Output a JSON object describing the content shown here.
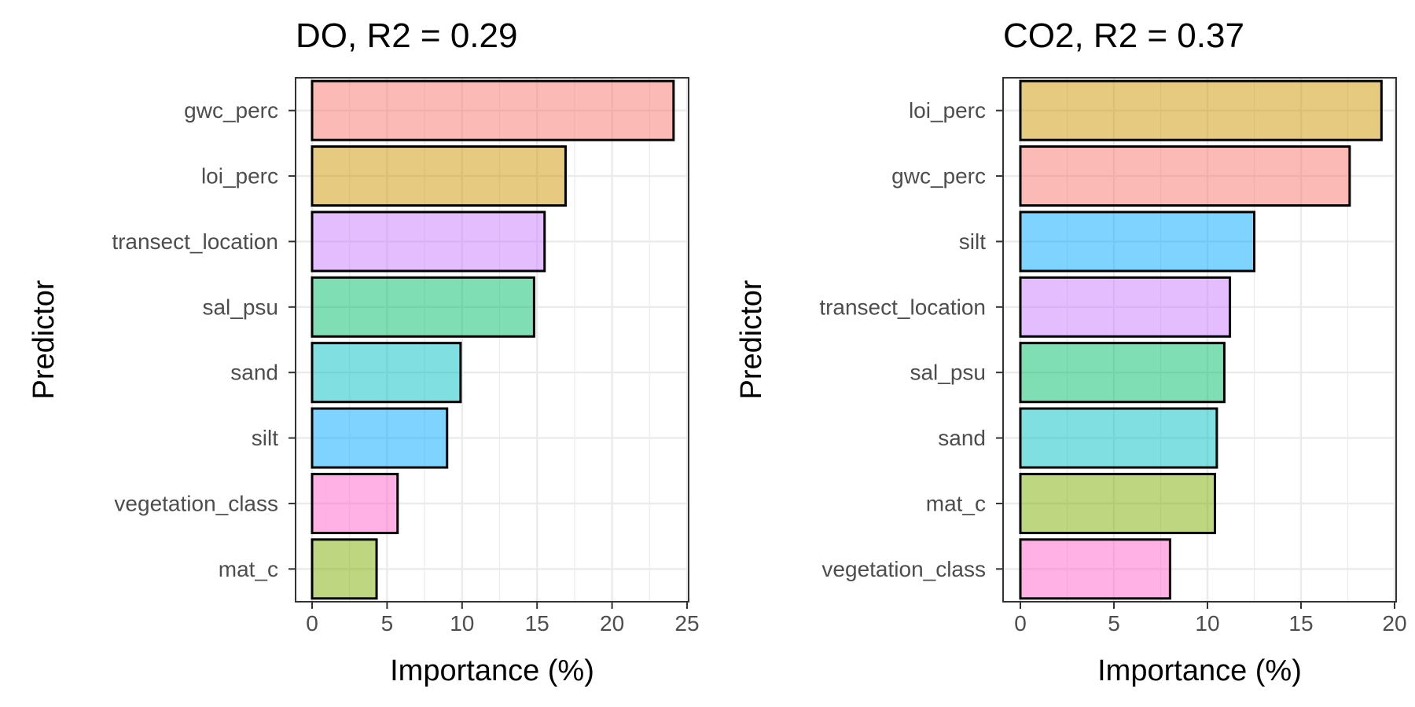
{
  "chart_data": [
    {
      "type": "bar",
      "orientation": "horizontal",
      "title": "DO, R2 = 0.29",
      "xlabel": "Importance (%)",
      "ylabel": "Predictor",
      "xlim": [
        0,
        25
      ],
      "xticks": [
        0,
        5,
        10,
        15,
        20,
        25
      ],
      "grid": true,
      "legend": "none",
      "categories": [
        "gwc_perc",
        "loi_perc",
        "transect_location",
        "sal_psu",
        "sand",
        "silt",
        "vegetation_class",
        "mat_c"
      ],
      "values": [
        24.1,
        16.9,
        15.5,
        14.8,
        9.9,
        9.0,
        5.7,
        4.3
      ],
      "colors": [
        "#F8766D",
        "#CD9600",
        "#C77CFF",
        "#00BE67",
        "#00BFC4",
        "#00A9FF",
        "#FF61CC",
        "#7CAE00"
      ]
    },
    {
      "type": "bar",
      "orientation": "horizontal",
      "title": "CO2, R2 = 0.37",
      "xlabel": "Importance (%)",
      "ylabel": "Predictor",
      "xlim": [
        0,
        20
      ],
      "xticks": [
        0,
        5,
        10,
        15,
        20
      ],
      "grid": true,
      "legend": "none",
      "categories": [
        "loi_perc",
        "gwc_perc",
        "silt",
        "transect_location",
        "sal_psu",
        "sand",
        "mat_c",
        "vegetation_class"
      ],
      "values": [
        19.3,
        17.6,
        12.5,
        11.2,
        10.9,
        10.5,
        10.4,
        8.0
      ],
      "colors": [
        "#CD9600",
        "#F8766D",
        "#00A9FF",
        "#C77CFF",
        "#00BE67",
        "#00BFC4",
        "#7CAE00",
        "#FF61CC"
      ]
    }
  ]
}
